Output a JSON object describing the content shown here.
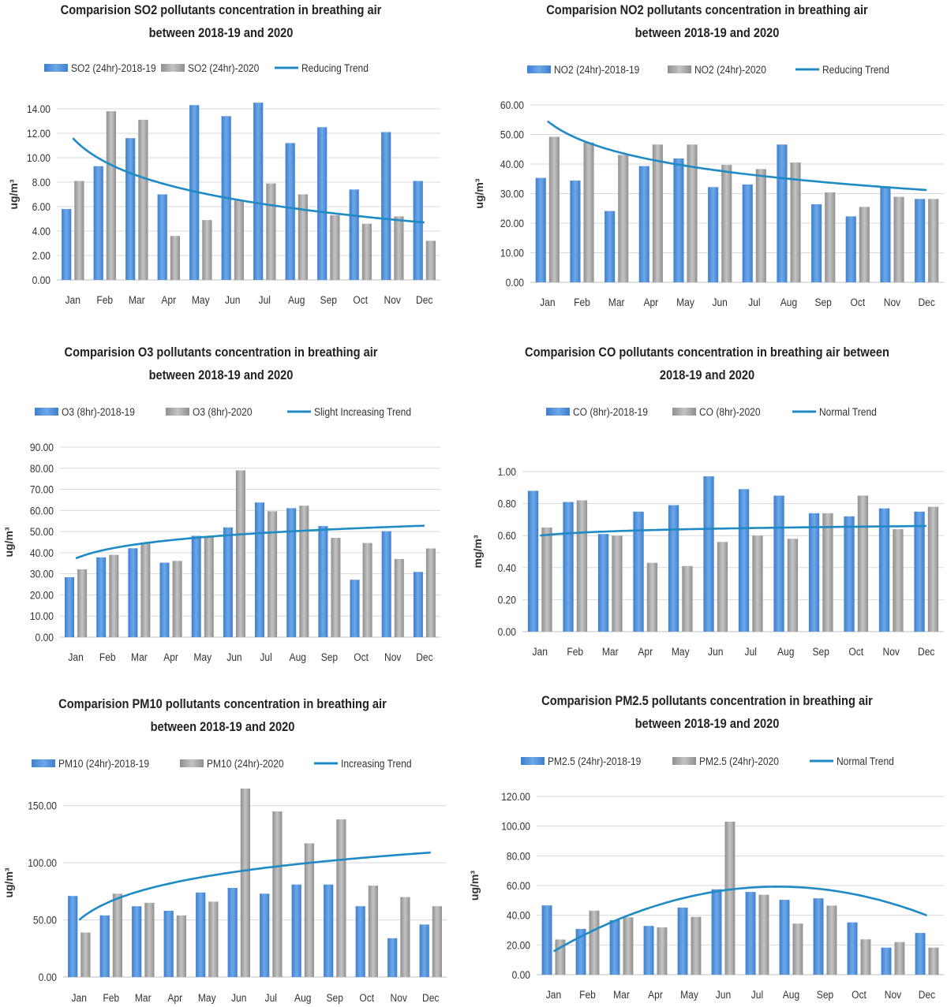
{
  "figure": {
    "colors": {
      "bar2018": "#4f8fd6",
      "bar2020": "#a6a6a6",
      "trend": "#1f8ac4",
      "grid": "#d9d9d9"
    }
  },
  "chart_data": [
    {
      "id": "so2",
      "type": "bar",
      "title": [
        "Comparision SO2 pollutants concentration in breathing air",
        "between 2018-19 and 2020"
      ],
      "ylabel": "ug/m³",
      "ylim": [
        0,
        14
      ],
      "yticks": [
        0,
        2,
        4,
        6,
        8,
        10,
        12,
        14
      ],
      "categories": [
        "Jan",
        "Feb",
        "Mar",
        "Apr",
        "May",
        "Jun",
        "Jul",
        "Aug",
        "Sep",
        "Oct",
        "Nov",
        "Dec"
      ],
      "series": [
        {
          "name": "SO2 (24hr)-2018-19",
          "values": [
            5.8,
            9.3,
            11.6,
            7.0,
            14.3,
            13.4,
            14.5,
            11.2,
            12.5,
            7.4,
            12.1,
            8.1
          ]
        },
        {
          "name": "SO2 (24hr)-2020",
          "values": [
            8.1,
            13.8,
            13.1,
            3.6,
            4.9,
            6.5,
            7.9,
            7.0,
            5.3,
            4.6,
            5.2,
            3.2
          ]
        }
      ],
      "trend": {
        "name": "Reducing Trend",
        "kind": "log",
        "start": 11.6,
        "end": 4.7
      }
    },
    {
      "id": "no2",
      "type": "bar",
      "title": [
        "Comparision NO2 pollutants concentration in breathing air",
        "between 2018-19 and 2020"
      ],
      "ylabel": "ug/m³",
      "ylim": [
        0,
        60
      ],
      "yticks": [
        0,
        10,
        20,
        30,
        40,
        50,
        60
      ],
      "categories": [
        "Jan",
        "Feb",
        "Mar",
        "Apr",
        "May",
        "Jun",
        "Jul",
        "Aug",
        "Sep",
        "Oct",
        "Nov",
        "Dec"
      ],
      "series": [
        {
          "name": "NO2 (24hr)-2018-19",
          "values": [
            35.3,
            34.4,
            24.1,
            39.3,
            41.9,
            32.2,
            33.1,
            46.6,
            26.4,
            22.3,
            32.3,
            28.2
          ]
        },
        {
          "name": "NO2 (24hr)-2020",
          "values": [
            49.2,
            47.3,
            43.1,
            46.6,
            46.6,
            39.7,
            38.3,
            40.5,
            30.4,
            25.5,
            28.9,
            28.2
          ]
        }
      ],
      "trend": {
        "name": "Reducing Trend",
        "kind": "log",
        "start": 54.5,
        "end": 31.2
      }
    },
    {
      "id": "o3",
      "type": "bar",
      "title": [
        "Comparision O3 pollutants concentration in breathing air",
        "between 2018-19 and 2020"
      ],
      "ylabel": "ug/m³",
      "ylim": [
        0,
        90
      ],
      "yticks": [
        0,
        10,
        20,
        30,
        40,
        50,
        60,
        70,
        80,
        90
      ],
      "categories": [
        "Jan",
        "Feb",
        "Mar",
        "Apr",
        "May",
        "Jun",
        "Jul",
        "Aug",
        "Sep",
        "Oct",
        "Nov",
        "Dec"
      ],
      "series": [
        {
          "name": "O3 (8hr)-2018-19",
          "values": [
            28.4,
            37.8,
            42.1,
            35.3,
            48.0,
            52.0,
            63.8,
            61.1,
            52.6,
            27.2,
            50.2,
            30.9
          ]
        },
        {
          "name": "O3 (8hr)-2020",
          "values": [
            32.1,
            39.0,
            44.7,
            36.1,
            47.2,
            79.0,
            59.6,
            62.3,
            47.0,
            44.6,
            37.0,
            42.0
          ]
        }
      ],
      "trend": {
        "name": "Slight Increasing Trend",
        "kind": "log",
        "start": 37.3,
        "end": 52.8
      }
    },
    {
      "id": "co",
      "type": "bar",
      "title": [
        "Comparision CO pollutants concentration in breathing air between",
        "2018-19 and 2020"
      ],
      "ylabel": "mg/m³",
      "ylim": [
        0,
        1
      ],
      "yticks": [
        0,
        0.2,
        0.4,
        0.6,
        0.8,
        1.0
      ],
      "categories": [
        "Jan",
        "Feb",
        "Mar",
        "Apr",
        "May",
        "Jun",
        "Jul",
        "Aug",
        "Sep",
        "Oct",
        "Nov",
        "Dec"
      ],
      "series": [
        {
          "name": "CO (8hr)-2018-19",
          "values": [
            0.88,
            0.81,
            0.61,
            0.75,
            0.79,
            0.97,
            0.89,
            0.85,
            0.74,
            0.72,
            0.77,
            0.75
          ]
        },
        {
          "name": "CO (8hr)-2020",
          "values": [
            0.65,
            0.82,
            0.6,
            0.43,
            0.41,
            0.56,
            0.6,
            0.58,
            0.74,
            0.85,
            0.64,
            0.78
          ]
        }
      ],
      "trend": {
        "name": "Normal Trend",
        "kind": "log",
        "start": 0.6,
        "end": 0.66
      }
    },
    {
      "id": "pm10",
      "type": "bar",
      "title": [
        "Comparision PM10 pollutants concentration in breathing air",
        "between 2018-19 and 2020"
      ],
      "ylabel": "ug/m³",
      "ylim": [
        0,
        165
      ],
      "yticks": [
        0,
        50,
        100,
        150
      ],
      "categories": [
        "Jan",
        "Feb",
        "Mar",
        "Apr",
        "May",
        "Jun",
        "Jul",
        "Aug",
        "Sep",
        "Oct",
        "Nov",
        "Dec"
      ],
      "series": [
        {
          "name": "PM10 (24hr)-2018-19",
          "values": [
            71,
            54,
            62,
            58,
            74,
            78,
            73,
            81,
            81,
            62,
            34,
            46
          ]
        },
        {
          "name": "PM10 (24hr)-2020",
          "values": [
            39,
            73,
            65,
            54,
            66,
            165,
            145,
            117,
            138,
            80,
            70,
            62
          ]
        }
      ],
      "trend": {
        "name": "Increasing Trend",
        "kind": "log",
        "start": 50,
        "end": 109
      }
    },
    {
      "id": "pm25",
      "type": "bar",
      "title": [
        "Comparision PM2.5 pollutants concentration in breathing air",
        "between 2018-19 and 2020"
      ],
      "ylabel": "ug/m³",
      "ylim": [
        0,
        120
      ],
      "yticks": [
        0,
        20,
        40,
        60,
        80,
        100,
        120
      ],
      "categories": [
        "Jan",
        "Feb",
        "Mar",
        "Apr",
        "May",
        "Jun",
        "Jul",
        "Aug",
        "Sep",
        "Oct",
        "Nov",
        "Dec"
      ],
      "series": [
        {
          "name": "PM2.5 (24hr)-2018-19",
          "values": [
            46.6,
            30.8,
            36.7,
            32.8,
            45.2,
            57.5,
            55.7,
            50.4,
            51.4,
            35.2,
            18.2,
            28.1
          ]
        },
        {
          "name": "PM2.5 (24hr)-2020",
          "values": [
            23.7,
            43.1,
            38.6,
            31.8,
            38.9,
            103.0,
            53.8,
            34.4,
            46.5,
            23.8,
            22.0,
            18.2
          ]
        }
      ],
      "trend": {
        "name": "Normal Trend",
        "kind": "poly",
        "coef": [
          -1.0,
          15.2,
          1.5
        ]
      }
    }
  ]
}
